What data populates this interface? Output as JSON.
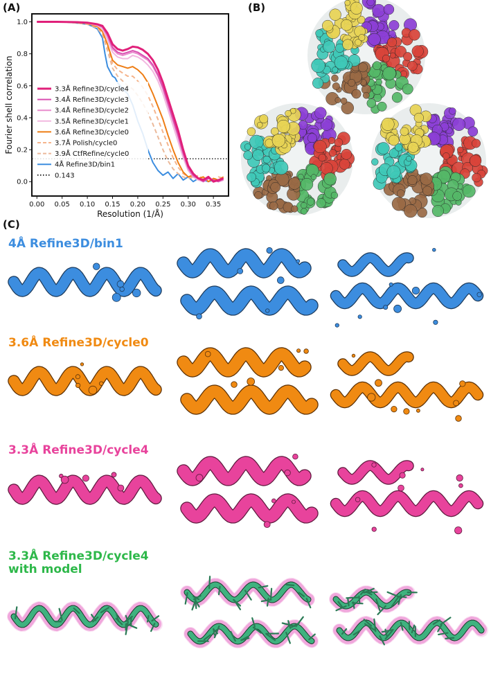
{
  "panels": {
    "a_label": "(A)",
    "b_label": "(B)",
    "c_label": "(C)"
  },
  "chart_data": {
    "type": "line",
    "xlabel": "Resolution (1/Å)",
    "ylabel": "Fourier shell correlation",
    "xlim": [
      -0.01,
      0.38
    ],
    "ylim": [
      -0.09,
      1.05
    ],
    "x_ticks": [
      "0.00",
      "0.05",
      "0.10",
      "0.15",
      "0.20",
      "0.25",
      "0.30",
      "0.35"
    ],
    "y_ticks": [
      "0.0",
      "0.2",
      "0.4",
      "0.6",
      "0.8",
      "1.0"
    ],
    "grid": false,
    "legend_position": "lower-left",
    "threshold": {
      "name": "0.143",
      "value": 0.143,
      "color": "#222222"
    },
    "series": [
      {
        "name": "3.3Å Refine3D/cycle4",
        "color": "#e0207a",
        "width": 3,
        "dash": "",
        "x": [
          0,
          0.02,
          0.04,
          0.06,
          0.08,
          0.1,
          0.11,
          0.12,
          0.13,
          0.14,
          0.15,
          0.16,
          0.17,
          0.18,
          0.19,
          0.2,
          0.21,
          0.22,
          0.23,
          0.24,
          0.25,
          0.26,
          0.27,
          0.28,
          0.29,
          0.3,
          0.31,
          0.32,
          0.33,
          0.34,
          0.35,
          0.36,
          0.37
        ],
        "y": [
          1.0,
          1.0,
          1.0,
          0.999,
          0.998,
          0.995,
          0.99,
          0.985,
          0.975,
          0.93,
          0.86,
          0.83,
          0.82,
          0.83,
          0.845,
          0.84,
          0.825,
          0.8,
          0.76,
          0.7,
          0.62,
          0.52,
          0.42,
          0.32,
          0.2,
          0.1,
          0.05,
          0.02,
          0.01,
          0.03,
          0.0,
          0.01,
          0.02
        ]
      },
      {
        "name": "3.4Å Refine3D/cycle3",
        "color": "#d94fb1",
        "width": 2,
        "dash": "",
        "x": [
          0,
          0.02,
          0.04,
          0.06,
          0.08,
          0.1,
          0.11,
          0.12,
          0.13,
          0.14,
          0.15,
          0.16,
          0.17,
          0.18,
          0.19,
          0.2,
          0.21,
          0.22,
          0.23,
          0.24,
          0.25,
          0.26,
          0.27,
          0.28,
          0.29,
          0.3,
          0.31,
          0.32,
          0.33,
          0.34,
          0.35,
          0.36,
          0.37
        ],
        "y": [
          1.0,
          1.0,
          1.0,
          0.999,
          0.997,
          0.994,
          0.988,
          0.982,
          0.97,
          0.92,
          0.84,
          0.81,
          0.8,
          0.81,
          0.82,
          0.81,
          0.79,
          0.77,
          0.73,
          0.67,
          0.59,
          0.49,
          0.39,
          0.29,
          0.18,
          0.09,
          0.04,
          0.02,
          0.0,
          0.02,
          0.01,
          0.0,
          0.02
        ]
      },
      {
        "name": "3.4Å Refine3D/cycle2",
        "color": "#e98ccc",
        "width": 2,
        "dash": "",
        "x": [
          0,
          0.02,
          0.04,
          0.06,
          0.08,
          0.1,
          0.11,
          0.12,
          0.13,
          0.14,
          0.15,
          0.16,
          0.17,
          0.18,
          0.19,
          0.2,
          0.21,
          0.22,
          0.23,
          0.24,
          0.25,
          0.26,
          0.27,
          0.28,
          0.29,
          0.3,
          0.31,
          0.32,
          0.33,
          0.34,
          0.35,
          0.36,
          0.37
        ],
        "y": [
          1.0,
          1.0,
          1.0,
          0.999,
          0.997,
          0.993,
          0.987,
          0.98,
          0.965,
          0.91,
          0.83,
          0.8,
          0.79,
          0.8,
          0.81,
          0.8,
          0.78,
          0.76,
          0.72,
          0.66,
          0.58,
          0.48,
          0.38,
          0.28,
          0.17,
          0.08,
          0.03,
          0.02,
          0.0,
          0.02,
          0.01,
          0.0,
          0.01
        ]
      },
      {
        "name": "3.5Å Refine3D/cycle1",
        "color": "#f2b8e0",
        "width": 2,
        "dash": "",
        "x": [
          0,
          0.02,
          0.04,
          0.06,
          0.08,
          0.1,
          0.11,
          0.12,
          0.13,
          0.14,
          0.15,
          0.16,
          0.17,
          0.18,
          0.19,
          0.2,
          0.21,
          0.22,
          0.23,
          0.24,
          0.25,
          0.26,
          0.27,
          0.28,
          0.29,
          0.3,
          0.31,
          0.32,
          0.33,
          0.34,
          0.35,
          0.36,
          0.37
        ],
        "y": [
          1.0,
          1.0,
          1.0,
          0.999,
          0.996,
          0.992,
          0.985,
          0.976,
          0.955,
          0.89,
          0.81,
          0.78,
          0.77,
          0.77,
          0.79,
          0.78,
          0.76,
          0.73,
          0.69,
          0.63,
          0.55,
          0.45,
          0.35,
          0.25,
          0.15,
          0.07,
          0.03,
          0.01,
          0.0,
          0.02,
          0.01,
          0.0,
          0.01
        ]
      },
      {
        "name": "3.6Å Refine3D/cycle0",
        "color": "#ee7d14",
        "width": 2,
        "dash": "",
        "x": [
          0,
          0.02,
          0.04,
          0.06,
          0.08,
          0.1,
          0.11,
          0.12,
          0.13,
          0.14,
          0.15,
          0.16,
          0.17,
          0.18,
          0.19,
          0.2,
          0.21,
          0.22,
          0.23,
          0.24,
          0.25,
          0.26,
          0.27,
          0.28,
          0.29,
          0.3,
          0.31,
          0.32,
          0.33,
          0.34,
          0.35,
          0.36,
          0.37
        ],
        "y": [
          1.0,
          1.0,
          1.0,
          0.998,
          0.995,
          0.99,
          0.98,
          0.97,
          0.94,
          0.86,
          0.76,
          0.73,
          0.72,
          0.71,
          0.72,
          0.7,
          0.67,
          0.62,
          0.55,
          0.47,
          0.39,
          0.29,
          0.2,
          0.12,
          0.06,
          0.03,
          0.04,
          0.02,
          0.03,
          0.0,
          0.02,
          0.01,
          0.03
        ]
      },
      {
        "name": "3.7Å Polish/cycle0",
        "color": "#f5b48c",
        "width": 2,
        "dash": "6,4",
        "x": [
          0,
          0.02,
          0.04,
          0.06,
          0.08,
          0.1,
          0.11,
          0.12,
          0.13,
          0.14,
          0.15,
          0.16,
          0.17,
          0.18,
          0.19,
          0.2,
          0.21,
          0.22,
          0.23,
          0.24,
          0.25,
          0.26,
          0.27,
          0.28,
          0.29,
          0.3,
          0.31,
          0.32,
          0.33,
          0.34,
          0.35,
          0.36,
          0.37
        ],
        "y": [
          1.0,
          1.0,
          1.0,
          0.998,
          0.994,
          0.988,
          0.978,
          0.965,
          0.93,
          0.84,
          0.74,
          0.7,
          0.68,
          0.66,
          0.66,
          0.63,
          0.59,
          0.54,
          0.47,
          0.39,
          0.31,
          0.23,
          0.15,
          0.09,
          0.05,
          0.03,
          0.02,
          0.04,
          0.01,
          0.02,
          0.01,
          0.03,
          0.02
        ]
      },
      {
        "name": "3.9Å CtfRefine/cycle0",
        "color": "#ebb99a",
        "width": 2,
        "dash": "6,4",
        "x": [
          0,
          0.02,
          0.04,
          0.06,
          0.08,
          0.1,
          0.11,
          0.12,
          0.13,
          0.14,
          0.15,
          0.16,
          0.17,
          0.18,
          0.19,
          0.2,
          0.21,
          0.22,
          0.23,
          0.24,
          0.25,
          0.26,
          0.27,
          0.28,
          0.29,
          0.3,
          0.31,
          0.32,
          0.33,
          0.34,
          0.35,
          0.36,
          0.37
        ],
        "y": [
          1.0,
          1.0,
          1.0,
          0.998,
          0.993,
          0.985,
          0.974,
          0.96,
          0.92,
          0.82,
          0.71,
          0.66,
          0.63,
          0.6,
          0.58,
          0.54,
          0.49,
          0.43,
          0.36,
          0.28,
          0.2,
          0.13,
          0.08,
          0.05,
          0.03,
          0.02,
          0.03,
          0.01,
          0.02,
          0.0,
          0.02,
          0.01,
          0.02
        ]
      },
      {
        "name": "4Å Refine3D/bin1",
        "color": "#3c8ddf",
        "width": 2,
        "dash": "",
        "x": [
          0,
          0.02,
          0.04,
          0.06,
          0.08,
          0.1,
          0.11,
          0.12,
          0.13,
          0.135,
          0.14,
          0.145,
          0.15,
          0.155,
          0.16,
          0.17,
          0.18,
          0.19,
          0.2,
          0.21,
          0.22,
          0.23,
          0.24,
          0.25,
          0.26,
          0.27,
          0.28,
          0.29,
          0.3,
          0.31,
          0.32,
          0.33,
          0.34,
          0.35,
          0.36
        ],
        "y": [
          1.0,
          1.0,
          1.0,
          0.998,
          0.993,
          0.985,
          0.972,
          0.955,
          0.9,
          0.8,
          0.72,
          0.69,
          0.66,
          0.65,
          0.62,
          0.58,
          0.55,
          0.48,
          0.38,
          0.3,
          0.2,
          0.12,
          0.07,
          0.04,
          0.06,
          0.02,
          0.05,
          0.01,
          0.03,
          0.0,
          0.02,
          0.01,
          0.0,
          0.01,
          0.0
        ]
      }
    ]
  },
  "rows": [
    {
      "title": "4Å Refine3D/bin1",
      "color": "#3c8ddf",
      "stroke": "#1d3b5c"
    },
    {
      "title": "3.6Å Refine3D/cycle0",
      "color": "#f08a12",
      "stroke": "#5c3106"
    },
    {
      "title": "3.3Å Refine3D/cycle4",
      "color": "#e8439c",
      "stroke": "#5e1a3e"
    },
    {
      "title_line1": "3.3Å Refine3D/cycle4",
      "title_line2": "with model",
      "color": "#2eb84a",
      "model": "#3fb27f",
      "mesh": "#e878c8"
    }
  ],
  "rings": {
    "colors": [
      "#8c3fd6",
      "#d9443a",
      "#55b868",
      "#9a6a45",
      "#3fc9b8",
      "#e8d455"
    ]
  }
}
